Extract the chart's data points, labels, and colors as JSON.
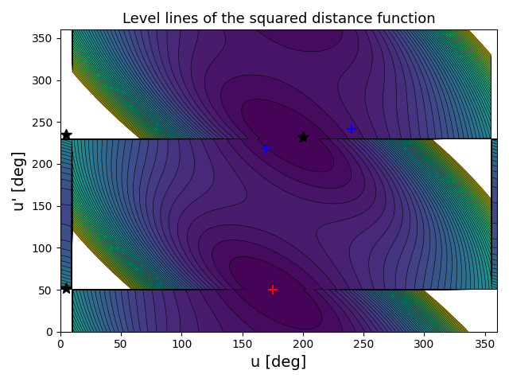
{
  "title": "Level lines of the squared distance function",
  "xlabel": "u [deg]",
  "ylabel": "u' [deg]",
  "xlim": [
    0,
    360
  ],
  "ylim": [
    0,
    360
  ],
  "xticks": [
    0,
    50,
    100,
    150,
    200,
    250,
    300,
    350
  ],
  "yticks": [
    0,
    50,
    100,
    150,
    200,
    250,
    300,
    350
  ],
  "colormap": "viridis",
  "n_levels": 50,
  "obs1": [
    5,
    52
  ],
  "obs2": [
    5,
    235
  ],
  "marker_red_cross": [
    175,
    50
  ],
  "marker_black_star1": [
    5,
    235
  ],
  "marker_black_star2": [
    5,
    52
  ],
  "marker_blue_cross1": [
    170,
    218
  ],
  "marker_blue_cross2": [
    240,
    242
  ],
  "marker_black_star3": [
    200,
    232
  ],
  "figsize": [
    6.4,
    4.8
  ],
  "dpi": 100
}
